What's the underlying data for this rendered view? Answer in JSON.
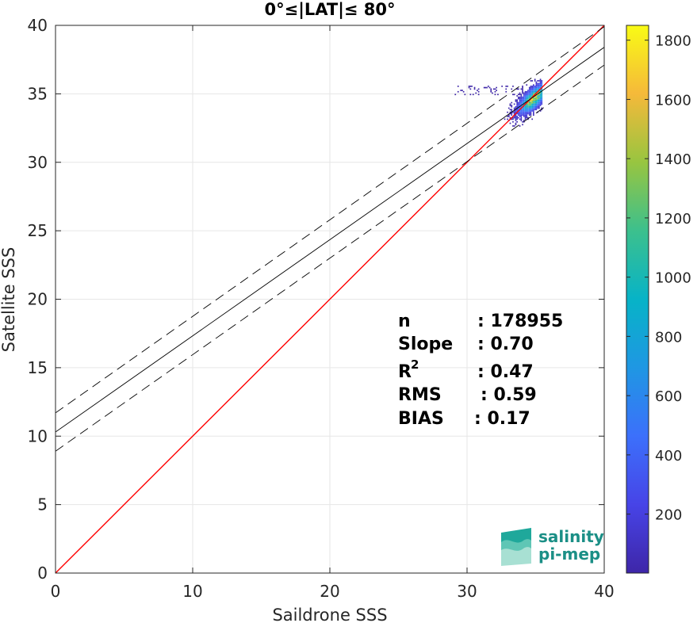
{
  "chart_data": {
    "type": "heatmap",
    "title": "0°≤|LAT|≤ 80°",
    "xlabel": "Saildrone SSS",
    "ylabel": "Satellite SSS",
    "xlim": [
      0,
      40
    ],
    "ylim": [
      0,
      40
    ],
    "xticks": [
      "0",
      "10",
      "20",
      "30",
      "40"
    ],
    "yticks": [
      "0",
      "5",
      "10",
      "15",
      "20",
      "25",
      "30",
      "35",
      "40"
    ],
    "grid": true,
    "colorbar": {
      "min": 1,
      "max": 1850,
      "ticks": [
        "200",
        "400",
        "600",
        "800",
        "1000",
        "1200",
        "1400",
        "1600",
        "1800"
      ],
      "tick_values": [
        200,
        400,
        600,
        800,
        1000,
        1200,
        1400,
        1600,
        1800
      ],
      "colormap": "parula"
    },
    "lines": [
      {
        "name": "one-to-one",
        "color": "#ff0000",
        "style": "solid",
        "x": [
          0,
          40
        ],
        "y": [
          0,
          40
        ]
      },
      {
        "name": "regression",
        "color": "#000000",
        "style": "solid",
        "x": [
          0,
          40
        ],
        "y": [
          10.3,
          38.4
        ]
      },
      {
        "name": "regression-upper",
        "color": "#000000",
        "style": "dashed",
        "x": [
          0,
          40
        ],
        "y": [
          11.7,
          39.9
        ]
      },
      {
        "name": "regression-lower",
        "color": "#000000",
        "style": "dashed",
        "x": [
          0,
          40
        ],
        "y": [
          8.9,
          37.1
        ]
      }
    ],
    "cluster": {
      "x_range": [
        29.0,
        35.5
      ],
      "y_range": [
        32.5,
        36.1
      ],
      "center": [
        34.8,
        34.6
      ],
      "peak_count": 1850
    },
    "stats": [
      {
        "label": "n",
        "value": ": 178955"
      },
      {
        "label": "Slope",
        "value": ": 0.70"
      },
      {
        "label": "R",
        "sup": "2",
        "value": ": 0.47"
      },
      {
        "label": "RMS",
        "value": ": 0.59"
      },
      {
        "label": "BIAS",
        "value": ": 0.17"
      }
    ]
  },
  "logo": {
    "line1": "salinity",
    "line2": "pi-mep"
  },
  "colors": {
    "one_to_one": "#ff0000",
    "regression": "#000000",
    "logo_teal": "#1b8f86",
    "grid": "#e6e6e6"
  }
}
